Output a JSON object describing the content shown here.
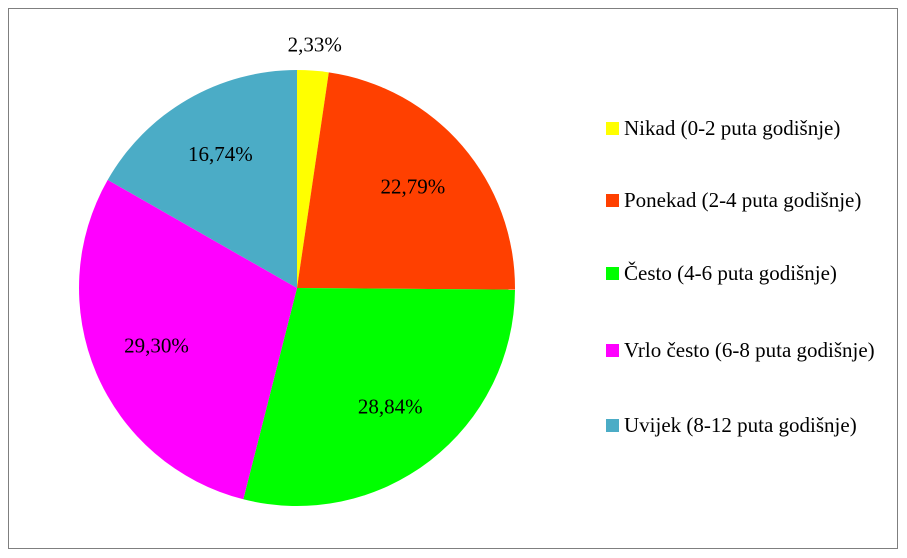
{
  "chart_data": {
    "type": "pie",
    "categories": [
      "Nikad (0-2 puta godišnje)",
      "Ponekad (2-4 puta godišnje)",
      "Često (4-6 puta godišnje)",
      "Vrlo često (6-8 puta godišnje)",
      "Uvijek (8-12 puta godišnje)"
    ],
    "values": [
      2.33,
      22.79,
      28.84,
      29.3,
      16.74
    ],
    "value_labels": [
      "2,33%",
      "22,79%",
      "28,84%",
      "29,30%",
      "16,74%"
    ],
    "colors": [
      "#ffff00",
      "#ff4000",
      "#00ff00",
      "#ff00ff",
      "#4bacc6"
    ],
    "legend": "right"
  }
}
